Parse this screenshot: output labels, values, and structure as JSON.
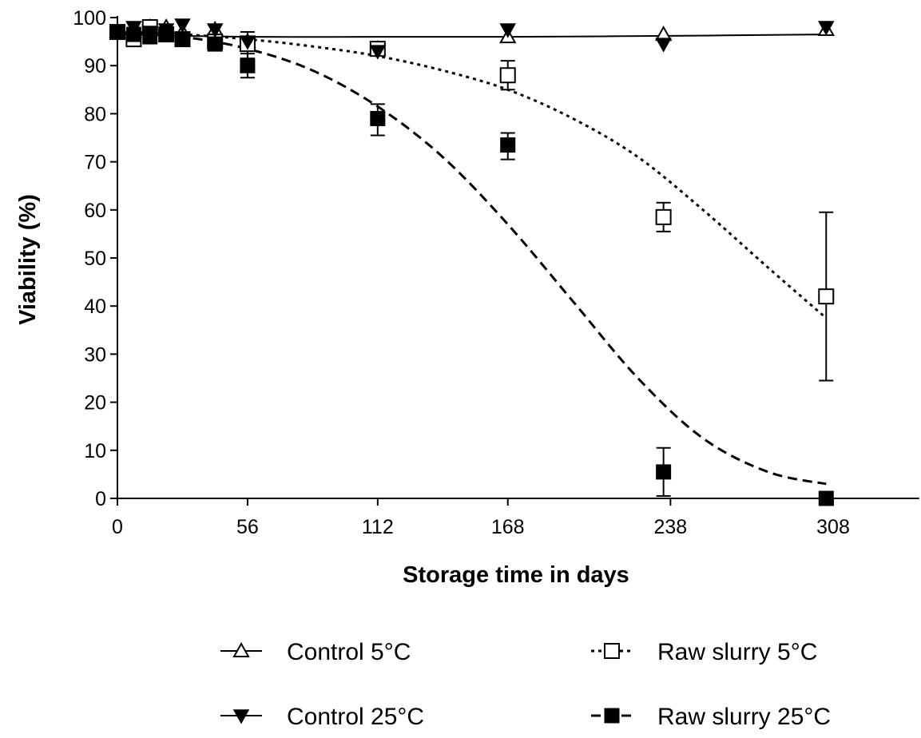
{
  "chart_data": {
    "type": "scatter",
    "title": "",
    "xlabel": "Storage time in days",
    "ylabel": "Viability (%)",
    "xlim": [
      0,
      345
    ],
    "ylim": [
      0,
      100
    ],
    "x_ticks": [
      0,
      56,
      112,
      168,
      238,
      308
    ],
    "y_ticks": [
      0,
      10,
      20,
      30,
      40,
      50,
      60,
      70,
      80,
      90,
      100
    ],
    "grid": false,
    "legend_position": "bottom",
    "series": [
      {
        "name": "Control 5°C",
        "marker": "triangle-up-open",
        "line_style": "solid",
        "points": [
          {
            "x": 0,
            "y": 97
          },
          {
            "x": 7,
            "y": 97
          },
          {
            "x": 14,
            "y": 98
          },
          {
            "x": 21,
            "y": 98
          },
          {
            "x": 28,
            "y": 97
          },
          {
            "x": 42,
            "y": 97.5
          },
          {
            "x": 56,
            "y": 95
          },
          {
            "x": 112,
            "y": 93.5
          },
          {
            "x": 168,
            "y": 96
          },
          {
            "x": 235,
            "y": 96.5
          },
          {
            "x": 305,
            "y": 97.5
          }
        ],
        "fit": [
          {
            "x": 0,
            "y": 96.5
          },
          {
            "x": 56,
            "y": 96
          },
          {
            "x": 112,
            "y": 96
          },
          {
            "x": 168,
            "y": 96
          },
          {
            "x": 238,
            "y": 96.2
          },
          {
            "x": 305,
            "y": 96.5
          }
        ]
      },
      {
        "name": "Control 25°C",
        "marker": "triangle-down-filled",
        "line_style": "solid",
        "points": [
          {
            "x": 0,
            "y": 97
          },
          {
            "x": 7,
            "y": 98
          },
          {
            "x": 14,
            "y": 97
          },
          {
            "x": 21,
            "y": 97.5
          },
          {
            "x": 28,
            "y": 98.5
          },
          {
            "x": 42,
            "y": 97.5
          },
          {
            "x": 56,
            "y": 95
          },
          {
            "x": 112,
            "y": 93
          },
          {
            "x": 168,
            "y": 97.5
          },
          {
            "x": 235,
            "y": 94.5
          },
          {
            "x": 305,
            "y": 98
          }
        ],
        "fit": []
      },
      {
        "name": "Raw slurry 5°C",
        "marker": "square-open",
        "line_style": "dotted",
        "points": [
          {
            "x": 0,
            "y": 97
          },
          {
            "x": 7,
            "y": 95.5
          },
          {
            "x": 14,
            "y": 98
          },
          {
            "x": 21,
            "y": 96.5
          },
          {
            "x": 28,
            "y": 95.5
          },
          {
            "x": 42,
            "y": 95
          },
          {
            "x": 56,
            "y": 94.5
          },
          {
            "x": 112,
            "y": 93.5
          },
          {
            "x": 168,
            "y": 88
          },
          {
            "x": 235,
            "y": 58.5
          },
          {
            "x": 305,
            "y": 42
          }
        ],
        "error_bars": [
          {
            "x": 56,
            "low": 91.5,
            "high": 97
          },
          {
            "x": 168,
            "low": 85,
            "high": 91
          },
          {
            "x": 235,
            "low": 55.5,
            "high": 61.5
          },
          {
            "x": 305,
            "low": 24.5,
            "high": 59.5
          }
        ],
        "fit": [
          {
            "x": 0,
            "y": 97
          },
          {
            "x": 28,
            "y": 96.5
          },
          {
            "x": 56,
            "y": 95.5
          },
          {
            "x": 84,
            "y": 94
          },
          {
            "x": 112,
            "y": 92
          },
          {
            "x": 140,
            "y": 89
          },
          {
            "x": 168,
            "y": 85
          },
          {
            "x": 196,
            "y": 79
          },
          {
            "x": 224,
            "y": 71
          },
          {
            "x": 252,
            "y": 60
          },
          {
            "x": 280,
            "y": 48
          },
          {
            "x": 305,
            "y": 37.5
          }
        ]
      },
      {
        "name": "Raw slurry 25°C",
        "marker": "square-filled",
        "line_style": "dashed",
        "points": [
          {
            "x": 0,
            "y": 97
          },
          {
            "x": 7,
            "y": 96.5
          },
          {
            "x": 14,
            "y": 96
          },
          {
            "x": 21,
            "y": 96.5
          },
          {
            "x": 28,
            "y": 95.5
          },
          {
            "x": 42,
            "y": 94.5
          },
          {
            "x": 56,
            "y": 90
          },
          {
            "x": 112,
            "y": 79
          },
          {
            "x": 168,
            "y": 73.5
          },
          {
            "x": 235,
            "y": 5.5
          },
          {
            "x": 305,
            "y": 0
          }
        ],
        "error_bars": [
          {
            "x": 56,
            "low": 87.5,
            "high": 92.5
          },
          {
            "x": 112,
            "low": 75.5,
            "high": 82
          },
          {
            "x": 168,
            "low": 70.5,
            "high": 76
          },
          {
            "x": 235,
            "low": 0.5,
            "high": 10.5
          }
        ],
        "fit": [
          {
            "x": 0,
            "y": 97
          },
          {
            "x": 28,
            "y": 96
          },
          {
            "x": 56,
            "y": 93.5
          },
          {
            "x": 84,
            "y": 89
          },
          {
            "x": 112,
            "y": 81.5
          },
          {
            "x": 140,
            "y": 71
          },
          {
            "x": 168,
            "y": 57
          },
          {
            "x": 196,
            "y": 41
          },
          {
            "x": 224,
            "y": 25
          },
          {
            "x": 252,
            "y": 12.5
          },
          {
            "x": 280,
            "y": 5.5
          },
          {
            "x": 305,
            "y": 3
          }
        ]
      }
    ]
  }
}
